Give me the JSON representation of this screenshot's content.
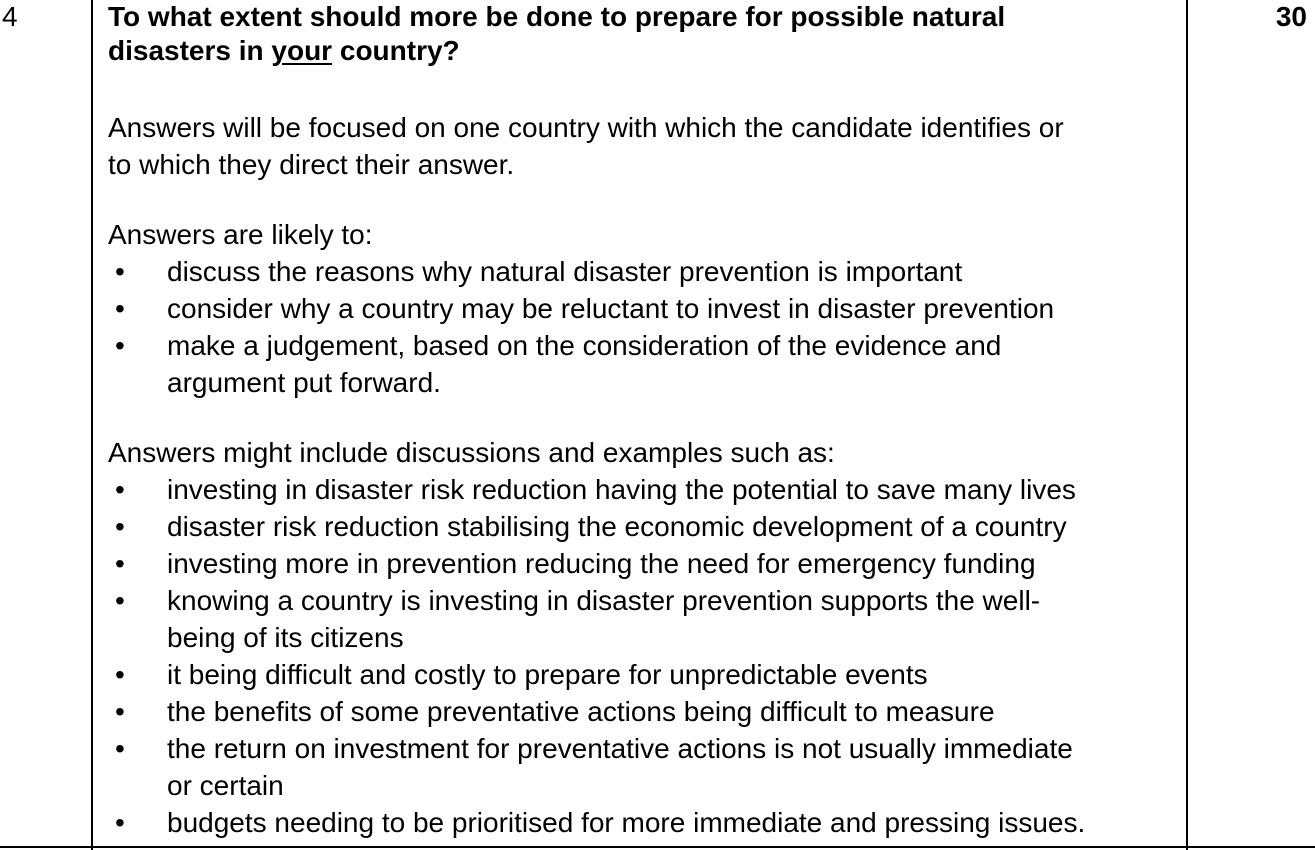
{
  "question_number": "4",
  "marks": "30",
  "question": {
    "part1": "To what extent should more be done to prepare for possible natural",
    "part2_before": "disasters in ",
    "part2_underlined": "your",
    "part2_after": " country?"
  },
  "intro": {
    "line1": "Answers will be focused on one country with which the candidate identifies or",
    "line2": "to which they direct their answer."
  },
  "likely": {
    "heading": "Answers are likely to:",
    "items": [
      [
        "discuss the reasons why natural disaster prevention is important"
      ],
      [
        "consider why a country may be reluctant to invest in disaster prevention"
      ],
      [
        "make a judgement, based on the consideration of the evidence and",
        "argument put forward."
      ]
    ]
  },
  "might": {
    "heading": "Answers might include discussions and examples such as:",
    "items": [
      [
        "investing in disaster risk reduction having the potential to save many lives"
      ],
      [
        "disaster risk reduction stabilising the economic development of a country"
      ],
      [
        "investing more in prevention reducing the need for emergency funding"
      ],
      [
        "knowing a country is investing in disaster prevention supports the well-",
        "being of its citizens"
      ],
      [
        "it being difficult and costly to prepare for unpredictable events"
      ],
      [
        "the benefits of some preventative actions being difficult to measure"
      ],
      [
        "the return on investment for preventative actions is not usually immediate",
        "or certain"
      ],
      [
        "budgets needing to be prioritised for more immediate and pressing issues."
      ]
    ]
  }
}
